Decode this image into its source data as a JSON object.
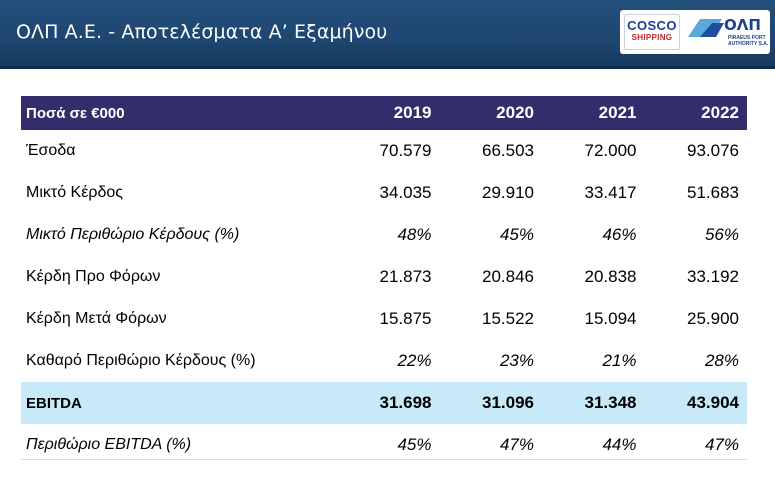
{
  "header": {
    "title": "ΟΛΠ Α.Ε.  - Αποτελέσματα Α’ Εξαμήνου",
    "colors": {
      "background": "#1d4670",
      "title": "#ffffff"
    }
  },
  "logos": {
    "cosco": {
      "line1": "COSCO",
      "line2": "SHIPPING"
    },
    "olp": {
      "name": "ΟΛΠ",
      "sub_line1": "PIRAEUS PORT",
      "sub_line2": "AUTHORITY S.A."
    }
  },
  "table": {
    "header_label": "Ποσά σε €000",
    "years": [
      "2019",
      "2020",
      "2021",
      "2022"
    ],
    "rows": [
      {
        "label": "Έσοδα",
        "values": [
          "70.579",
          "66.503",
          "72.000",
          "93.076"
        ]
      },
      {
        "label": "Μικτό Κέρδος",
        "values": [
          "34.035",
          "29.910",
          "33.417",
          "51.683"
        ]
      },
      {
        "label": "Μικτό Περιθώριο Κέρδους (%)",
        "values": [
          "48%",
          "45%",
          "46%",
          "56%"
        ]
      },
      {
        "label": "Κέρδη Προ Φόρων",
        "values": [
          "21.873",
          "20.846",
          "20.838",
          "33.192"
        ]
      },
      {
        "label": "Κέρδη Μετά Φόρων",
        "values": [
          "15.875",
          "15.522",
          "15.094",
          "25.900"
        ]
      },
      {
        "label": "Καθαρό Περιθώριο Κέρδους (%)",
        "values": [
          "22%",
          "23%",
          "21%",
          "28%"
        ]
      },
      {
        "label": "EBITDA",
        "values": [
          "31.698",
          "31.096",
          "31.348",
          "43.904"
        ]
      },
      {
        "label": "Περιθώριο EBITDA (%)",
        "values": [
          "45%",
          "47%",
          "44%",
          "47%"
        ]
      }
    ],
    "colors": {
      "header_row": "#342d6b",
      "highlight_row": "#c8e9f7"
    }
  }
}
